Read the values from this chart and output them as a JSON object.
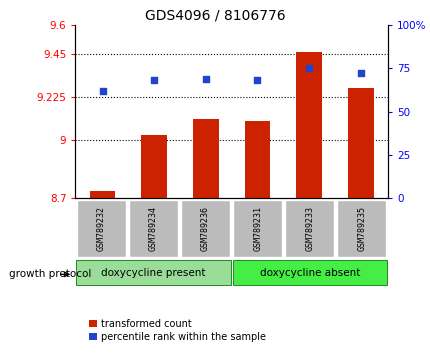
{
  "title": "GDS4096 / 8106776",
  "samples": [
    "GSM789232",
    "GSM789234",
    "GSM789236",
    "GSM789231",
    "GSM789233",
    "GSM789235"
  ],
  "transformed_count": [
    8.74,
    9.03,
    9.11,
    9.1,
    9.46,
    9.27
  ],
  "percentile_rank": [
    62,
    68,
    69,
    68,
    75,
    72
  ],
  "bar_color": "#cc2200",
  "dot_color": "#2244cc",
  "ylim_left": [
    8.7,
    9.6
  ],
  "ylim_right": [
    0,
    100
  ],
  "yticks_left": [
    8.7,
    9.0,
    9.225,
    9.45,
    9.6
  ],
  "ytick_labels_left": [
    "8.7",
    "9",
    "9.225",
    "9.45",
    "9.6"
  ],
  "yticks_right": [
    0,
    25,
    50,
    75,
    100
  ],
  "ytick_labels_right": [
    "0",
    "25",
    "50",
    "75",
    "100%"
  ],
  "hlines": [
    9.0,
    9.225,
    9.45
  ],
  "group1_label": "doxycycline present",
  "group2_label": "doxycycline absent",
  "group1_count": 3,
  "group2_count": 3,
  "protocol_label": "growth protocol",
  "legend_red": "transformed count",
  "legend_blue": "percentile rank within the sample",
  "bar_bottom": 8.7,
  "group1_color": "#99dd99",
  "group2_color": "#44ee44",
  "label_bg_color": "#bbbbbb"
}
